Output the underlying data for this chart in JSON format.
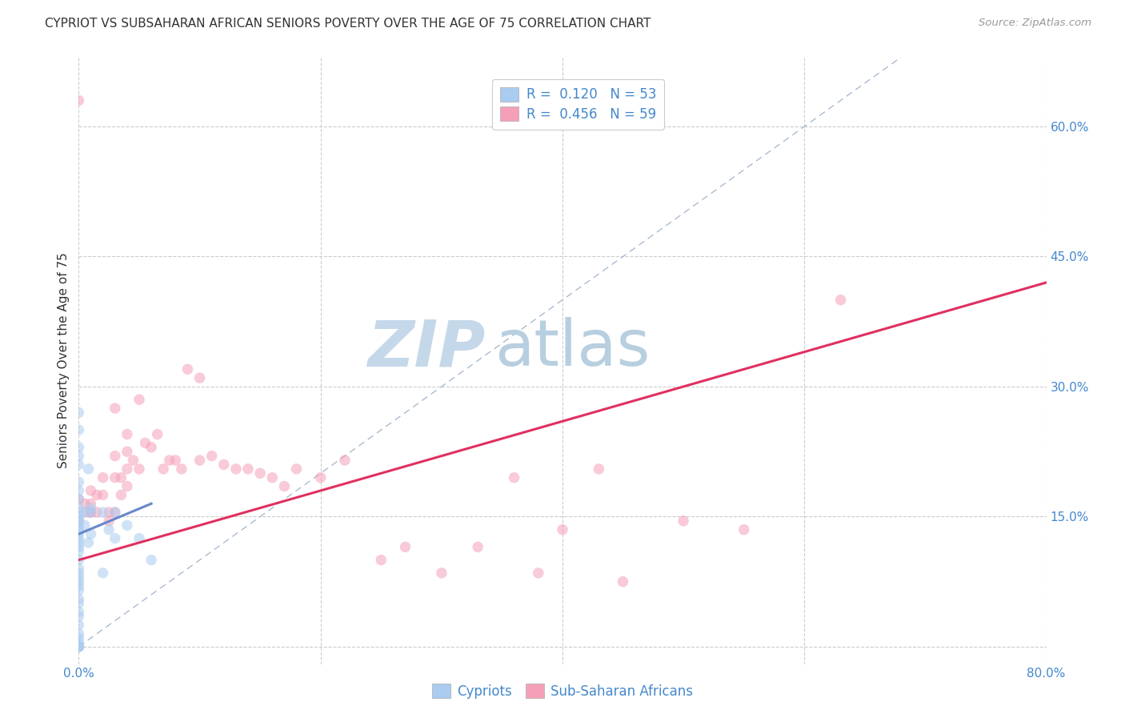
{
  "title": "CYPRIOT VS SUBSAHARAN AFRICAN SENIORS POVERTY OVER THE AGE OF 75 CORRELATION CHART",
  "source": "Source: ZipAtlas.com",
  "ylabel": "Seniors Poverty Over the Age of 75",
  "xlim": [
    0.0,
    0.8
  ],
  "ylim": [
    -0.02,
    0.68
  ],
  "ytick_positions": [
    0.0,
    0.15,
    0.3,
    0.45,
    0.6
  ],
  "ytick_labels": [
    "",
    "15.0%",
    "30.0%",
    "45.0%",
    "60.0%"
  ],
  "xtick_positions": [
    0.0,
    0.2,
    0.4,
    0.6,
    0.8
  ],
  "xtick_labels": [
    "0.0%",
    "",
    "",
    "",
    "80.0%"
  ],
  "background_color": "#ffffff",
  "grid_color": "#cccccc",
  "watermark_zip": "ZIP",
  "watermark_atlas": "atlas",
  "watermark_color_zip": "#c5d8ea",
  "watermark_color_atlas": "#b8cfe0",
  "legend_R1": "R =  0.120",
  "legend_N1": "N = 53",
  "legend_R2": "R =  0.456",
  "legend_N2": "N = 59",
  "cypriot_color": "#aaccf0",
  "subsaharan_color": "#f5a0b8",
  "cypriot_trend_color": "#6688cc",
  "subsaharan_trend_color": "#e03060",
  "diagonal_color": "#aabbd0",
  "cypriot_x": [
    0.0,
    0.0,
    0.0,
    0.0,
    0.0,
    0.0,
    0.0,
    0.0,
    0.0,
    0.0,
    0.0,
    0.0,
    0.0,
    0.0,
    0.0,
    0.0,
    0.0,
    0.0,
    0.0,
    0.0,
    0.0,
    0.0,
    0.0,
    0.0,
    0.0,
    0.0,
    0.0,
    0.0,
    0.0,
    0.0,
    0.0,
    0.0,
    0.0,
    0.0,
    0.0,
    0.0,
    0.0,
    0.0,
    0.005,
    0.005,
    0.008,
    0.008,
    0.01,
    0.01,
    0.01,
    0.02,
    0.02,
    0.025,
    0.03,
    0.03,
    0.04,
    0.05,
    0.06
  ],
  "cypriot_y": [
    0.27,
    0.25,
    0.23,
    0.22,
    0.21,
    0.19,
    0.18,
    0.17,
    0.16,
    0.155,
    0.15,
    0.145,
    0.14,
    0.135,
    0.13,
    0.125,
    0.12,
    0.115,
    0.11,
    0.1,
    0.09,
    0.085,
    0.08,
    0.075,
    0.07,
    0.065,
    0.055,
    0.05,
    0.04,
    0.035,
    0.025,
    0.015,
    0.01,
    0.005,
    0.0,
    0.0,
    0.0,
    0.0,
    0.155,
    0.14,
    0.205,
    0.12,
    0.16,
    0.155,
    0.13,
    0.155,
    0.085,
    0.135,
    0.155,
    0.125,
    0.14,
    0.125,
    0.1
  ],
  "subsaharan_x": [
    0.0,
    0.0,
    0.0,
    0.005,
    0.008,
    0.01,
    0.01,
    0.01,
    0.015,
    0.015,
    0.02,
    0.02,
    0.025,
    0.025,
    0.03,
    0.03,
    0.03,
    0.03,
    0.035,
    0.035,
    0.04,
    0.04,
    0.04,
    0.04,
    0.045,
    0.05,
    0.05,
    0.055,
    0.06,
    0.065,
    0.07,
    0.075,
    0.08,
    0.085,
    0.09,
    0.1,
    0.1,
    0.11,
    0.12,
    0.13,
    0.14,
    0.15,
    0.16,
    0.17,
    0.18,
    0.2,
    0.22,
    0.25,
    0.27,
    0.3,
    0.33,
    0.36,
    0.38,
    0.4,
    0.43,
    0.45,
    0.5,
    0.55,
    0.63
  ],
  "subsaharan_y": [
    0.63,
    0.17,
    0.145,
    0.165,
    0.155,
    0.18,
    0.165,
    0.155,
    0.175,
    0.155,
    0.195,
    0.175,
    0.155,
    0.145,
    0.275,
    0.22,
    0.195,
    0.155,
    0.195,
    0.175,
    0.245,
    0.225,
    0.205,
    0.185,
    0.215,
    0.285,
    0.205,
    0.235,
    0.23,
    0.245,
    0.205,
    0.215,
    0.215,
    0.205,
    0.32,
    0.31,
    0.215,
    0.22,
    0.21,
    0.205,
    0.205,
    0.2,
    0.195,
    0.185,
    0.205,
    0.195,
    0.215,
    0.1,
    0.115,
    0.085,
    0.115,
    0.195,
    0.085,
    0.135,
    0.205,
    0.075,
    0.145,
    0.135,
    0.4
  ],
  "marker_size": 95,
  "marker_alpha": 0.55,
  "trend_start_x": 0.0,
  "trend_end_x": 0.8,
  "subsaharan_trend_y_start": 0.1,
  "subsaharan_trend_y_end": 0.42,
  "cypriot_trend_y_start": 0.13,
  "cypriot_trend_y_end": 0.165
}
